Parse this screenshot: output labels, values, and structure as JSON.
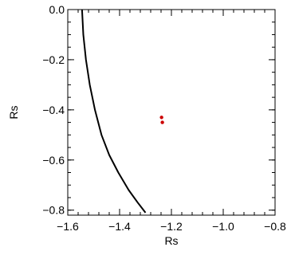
{
  "chart_data": {
    "type": "line",
    "title": "",
    "xlabel": "Rs",
    "ylabel": "Rs",
    "xlim": [
      -1.6,
      -0.8
    ],
    "ylim": [
      -0.82,
      0.0
    ],
    "xticks": [
      -1.6,
      -1.4,
      -1.2,
      -1.0,
      -0.8
    ],
    "yticks": [
      0.0,
      -0.2,
      -0.4,
      -0.6,
      -0.8
    ],
    "xtick_labels": [
      "−1.6",
      "−1.4",
      "−1.2",
      "−1.0",
      "−0.8"
    ],
    "ytick_labels": [
      "0.0",
      "−0.2",
      "−0.4",
      "−0.6",
      "−0.8"
    ],
    "grid": false,
    "series": [
      {
        "color": "#000000",
        "x": [
          -1.545,
          -1.54,
          -1.53,
          -1.515,
          -1.495,
          -1.47,
          -1.44,
          -1.405,
          -1.365,
          -1.33,
          -1.3
        ],
        "y": [
          0.0,
          -0.1,
          -0.2,
          -0.3,
          -0.4,
          -0.5,
          -0.58,
          -0.65,
          -0.72,
          -0.77,
          -0.81
        ]
      },
      {
        "color": "#cc0000",
        "type": "scatter",
        "x": [
          -1.238,
          -1.235
        ],
        "y": [
          -0.43,
          -0.45
        ]
      }
    ]
  }
}
